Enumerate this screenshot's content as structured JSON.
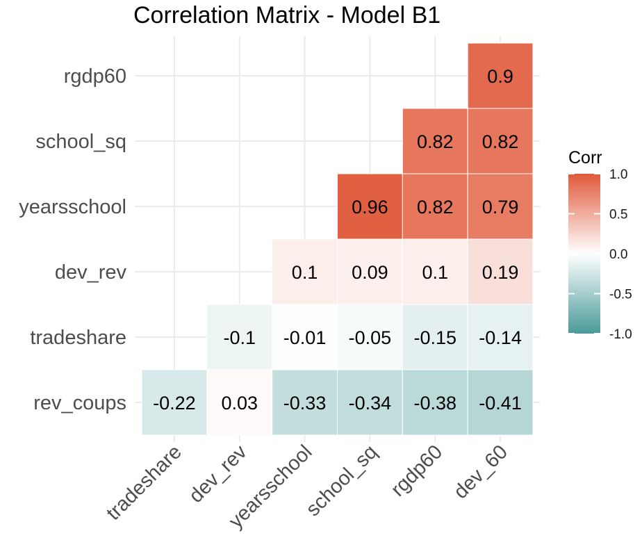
{
  "chart_data": {
    "type": "heatmap",
    "title": "Correlation Matrix - Model B1",
    "x_categories": [
      "tradeshare",
      "dev_rev",
      "yearsschool",
      "school_sq",
      "rgdp60",
      "dev_60"
    ],
    "y_categories": [
      "rev_coups",
      "tradeshare",
      "dev_rev",
      "yearsschool",
      "school_sq",
      "rgdp60"
    ],
    "values": [
      [
        -0.22,
        0.03,
        -0.33,
        -0.34,
        -0.38,
        -0.41
      ],
      [
        null,
        -0.1,
        -0.01,
        -0.05,
        -0.15,
        -0.14
      ],
      [
        null,
        null,
        0.1,
        0.09,
        0.1,
        0.19
      ],
      [
        null,
        null,
        null,
        0.96,
        0.82,
        0.79
      ],
      [
        null,
        null,
        null,
        null,
        0.82,
        0.82
      ],
      [
        null,
        null,
        null,
        null,
        null,
        0.9
      ]
    ],
    "xlabel": "",
    "ylabel": "",
    "legend": {
      "title": "Corr",
      "position": "right",
      "ticks": [
        1.0,
        0.5,
        0.0,
        -0.5,
        -1.0
      ],
      "tick_labels": [
        "1.0",
        "0.5",
        "0.0",
        "-0.5",
        "-1.0"
      ],
      "range": [
        -1,
        1
      ]
    },
    "colors": {
      "low": "#4a9a99",
      "mid": "#ffffff",
      "high": "#e0593a"
    },
    "grid": true
  }
}
